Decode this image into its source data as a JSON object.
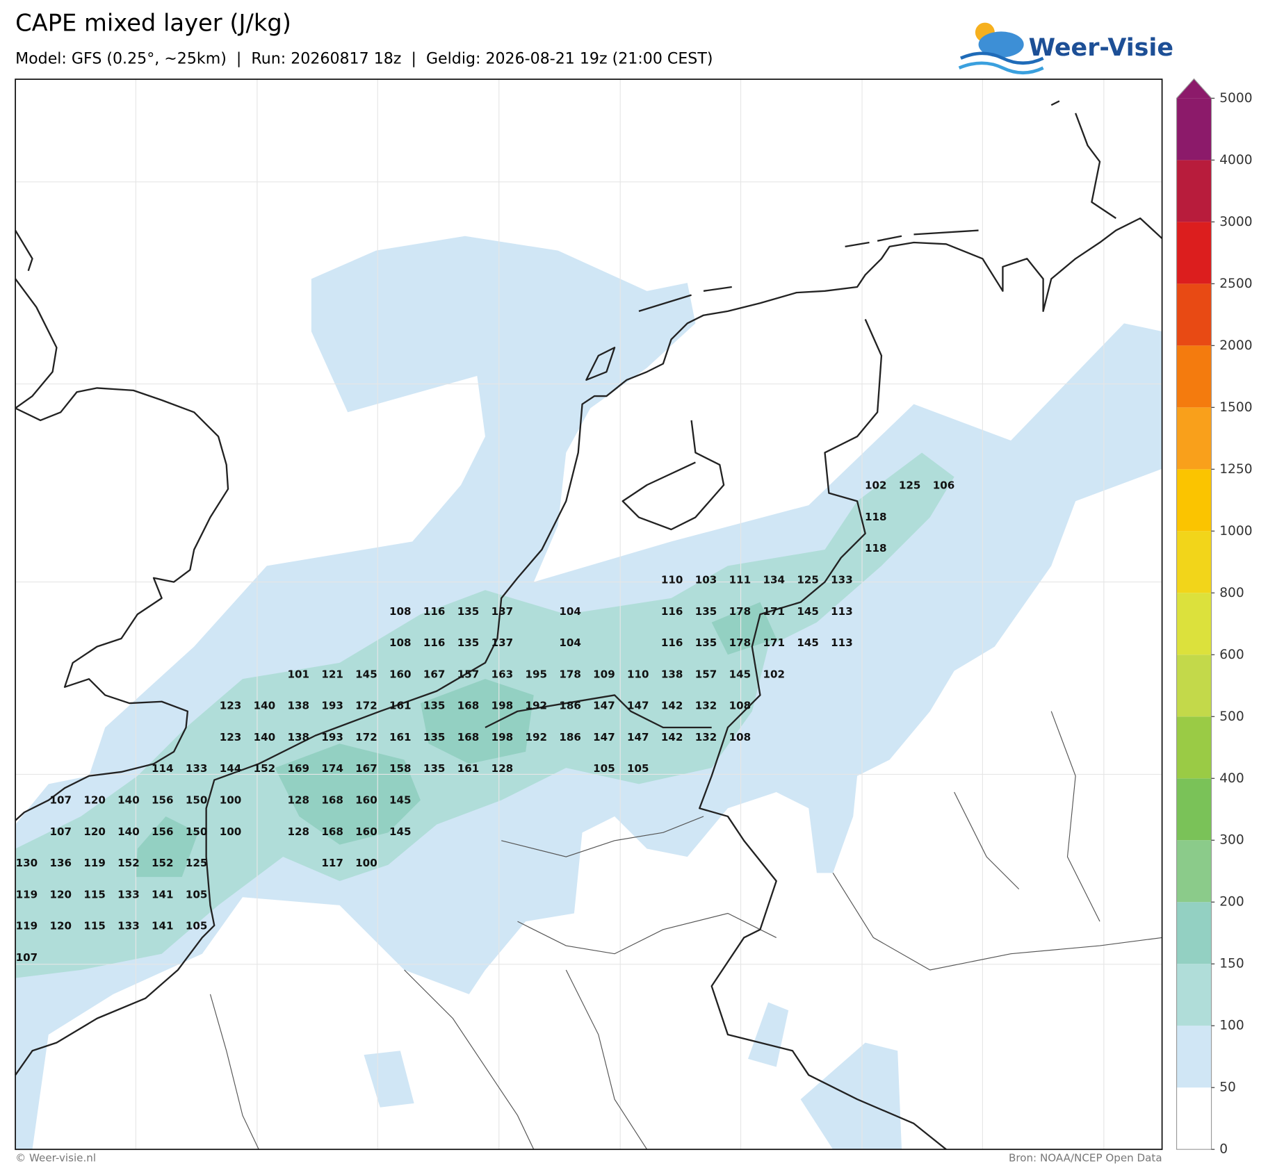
{
  "header": {
    "title": "CAPE mixed layer (J/kg)",
    "subtitle": "Model: GFS (0.25°, ~25km)  |  Run: 20260817 18z  |  Geldig: 2026-08-21 19z (21:00 CEST)",
    "logo": "Weer-Visie"
  },
  "map": {
    "labels": [
      [
        null,
        null,
        null,
        null,
        null,
        null,
        null,
        null,
        null,
        null,
        null,
        null,
        null,
        null,
        null,
        null,
        null,
        null,
        null,
        null,
        null,
        null,
        null,
        null,
        null,
        102,
        125,
        106
      ],
      [
        null,
        null,
        null,
        null,
        null,
        null,
        null,
        null,
        null,
        null,
        null,
        null,
        null,
        null,
        null,
        null,
        null,
        null,
        null,
        null,
        null,
        null,
        null,
        null,
        null,
        118,
        null,
        null
      ],
      [
        null,
        null,
        null,
        null,
        null,
        null,
        null,
        null,
        null,
        null,
        null,
        null,
        null,
        null,
        null,
        null,
        null,
        null,
        null,
        null,
        null,
        null,
        null,
        null,
        null,
        118,
        null,
        null
      ],
      [
        null,
        null,
        null,
        null,
        null,
        null,
        null,
        null,
        null,
        null,
        null,
        null,
        null,
        null,
        null,
        null,
        null,
        null,
        null,
        110,
        103,
        111,
        134,
        125,
        133,
        null,
        null,
        null
      ],
      [
        null,
        null,
        null,
        null,
        null,
        null,
        null,
        null,
        null,
        null,
        null,
        108,
        116,
        135,
        137,
        null,
        104,
        null,
        null,
        116,
        135,
        178,
        171,
        145,
        113,
        null,
        null,
        null
      ],
      [
        null,
        null,
        null,
        null,
        null,
        null,
        null,
        null,
        null,
        null,
        null,
        108,
        116,
        135,
        137,
        null,
        104,
        null,
        null,
        116,
        135,
        178,
        171,
        145,
        113,
        null,
        null,
        null
      ],
      [
        null,
        null,
        null,
        null,
        null,
        null,
        null,
        null,
        101,
        121,
        145,
        160,
        167,
        157,
        163,
        195,
        178,
        109,
        110,
        138,
        157,
        145,
        102,
        null,
        null,
        null,
        null,
        null
      ],
      [
        null,
        null,
        null,
        null,
        null,
        null,
        123,
        140,
        138,
        193,
        172,
        161,
        135,
        168,
        198,
        192,
        186,
        147,
        147,
        142,
        132,
        108,
        null,
        null,
        null,
        null,
        null,
        null
      ],
      [
        null,
        null,
        null,
        null,
        null,
        null,
        123,
        140,
        138,
        193,
        172,
        161,
        135,
        168,
        198,
        192,
        186,
        147,
        147,
        142,
        132,
        108,
        null,
        null,
        null,
        null,
        null,
        null
      ],
      [
        null,
        null,
        null,
        null,
        114,
        133,
        144,
        152,
        169,
        174,
        167,
        158,
        135,
        161,
        128,
        null,
        null,
        105,
        105,
        null,
        null,
        null,
        null,
        null,
        null,
        null,
        null,
        null
      ],
      [
        null,
        107,
        120,
        140,
        156,
        150,
        100,
        null,
        128,
        168,
        160,
        145,
        null,
        null,
        null,
        null,
        null,
        null,
        null,
        null,
        null,
        null,
        null,
        null,
        null,
        null,
        null,
        null
      ],
      [
        null,
        107,
        120,
        140,
        156,
        150,
        100,
        null,
        128,
        168,
        160,
        145,
        null,
        null,
        null,
        null,
        null,
        null,
        null,
        null,
        null,
        null,
        null,
        null,
        null,
        null,
        null,
        null
      ],
      [
        130,
        136,
        119,
        152,
        152,
        125,
        null,
        null,
        null,
        117,
        100,
        null,
        null,
        null,
        null,
        null,
        null,
        null,
        null,
        null,
        null,
        null,
        null,
        null,
        null,
        null,
        null,
        null
      ],
      [
        119,
        120,
        115,
        133,
        141,
        105,
        null,
        null,
        null,
        null,
        null,
        null,
        null,
        null,
        null,
        null,
        null,
        null,
        null,
        null,
        null,
        null,
        null,
        null,
        null,
        null,
        null,
        null
      ],
      [
        119,
        120,
        115,
        133,
        141,
        105,
        null,
        null,
        null,
        null,
        null,
        null,
        null,
        null,
        null,
        null,
        null,
        null,
        null,
        null,
        null,
        null,
        null,
        null,
        null,
        null,
        null,
        null
      ],
      [
        107,
        null,
        null,
        null,
        null,
        null,
        null,
        null,
        null,
        null,
        null,
        null,
        null,
        null,
        null,
        null,
        null,
        null,
        null,
        null,
        null,
        null,
        null,
        null,
        null,
        null,
        null,
        null
      ]
    ]
  },
  "colorbar": {
    "ticks": [
      0,
      50,
      100,
      150,
      200,
      300,
      400,
      500,
      600,
      800,
      1000,
      1250,
      1500,
      2000,
      2500,
      3000,
      4000,
      5000
    ],
    "colors": [
      "#ffffff",
      "#d0e6f5",
      "#b0ddd9",
      "#93d0c2",
      "#8bcb8a",
      "#7ac258",
      "#9acb45",
      "#c3d94a",
      "#dce13c",
      "#f2d51a",
      "#fbc400",
      "#f9a01b",
      "#f47b0e",
      "#e84a14",
      "#dc1e1e",
      "#b81c3c",
      "#8c1a6a"
    ]
  },
  "footer": {
    "left": "© Weer-visie.nl",
    "right": "Bron: NOAA/NCEP Open Data"
  }
}
